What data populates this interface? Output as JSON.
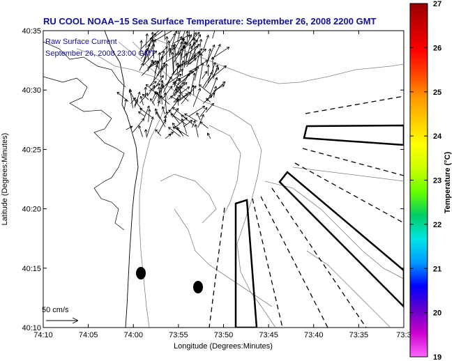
{
  "title": "RU COOL  NOAA−15  Sea Surface Temperature:  September 26, 2008 2200 GMT",
  "legend": {
    "line1": "Raw Surface Current",
    "line2": "September 26, 2008 23:00 GMT"
  },
  "axes": {
    "xlabel": "Longitude (Degrees:Minutes)",
    "ylabel": "Latitude (Degrees:Minutes)",
    "x_ticks": [
      "74:10",
      "74:05",
      "74:00",
      "73:55",
      "73:50",
      "73:45",
      "73:40",
      "73:35",
      "73:3"
    ],
    "y_ticks": [
      "40:35",
      "40:30",
      "40:25",
      "40:20",
      "40:15",
      "40:10"
    ]
  },
  "scale": {
    "label": "50 cm/s"
  },
  "colorbar": {
    "label": "Temperature (°C)",
    "ticks": [
      "27",
      "26",
      "25",
      "24",
      "23",
      "22",
      "21",
      "20",
      "19"
    ],
    "min": 19,
    "max": 27,
    "colors": [
      "#ff66ff",
      "#cc00cc",
      "#6600cc",
      "#0000ff",
      "#0099ff",
      "#00e5e5",
      "#00cc66",
      "#66ff00",
      "#ccff00",
      "#ffff00",
      "#ffcc00",
      "#ff9900",
      "#ff4400",
      "#ff0000",
      "#cc0000",
      "#990000"
    ]
  },
  "map": {
    "lon_range": [
      -74.1667,
      -73.5333
    ],
    "lat_range": [
      40.1667,
      40.5833
    ]
  }
}
